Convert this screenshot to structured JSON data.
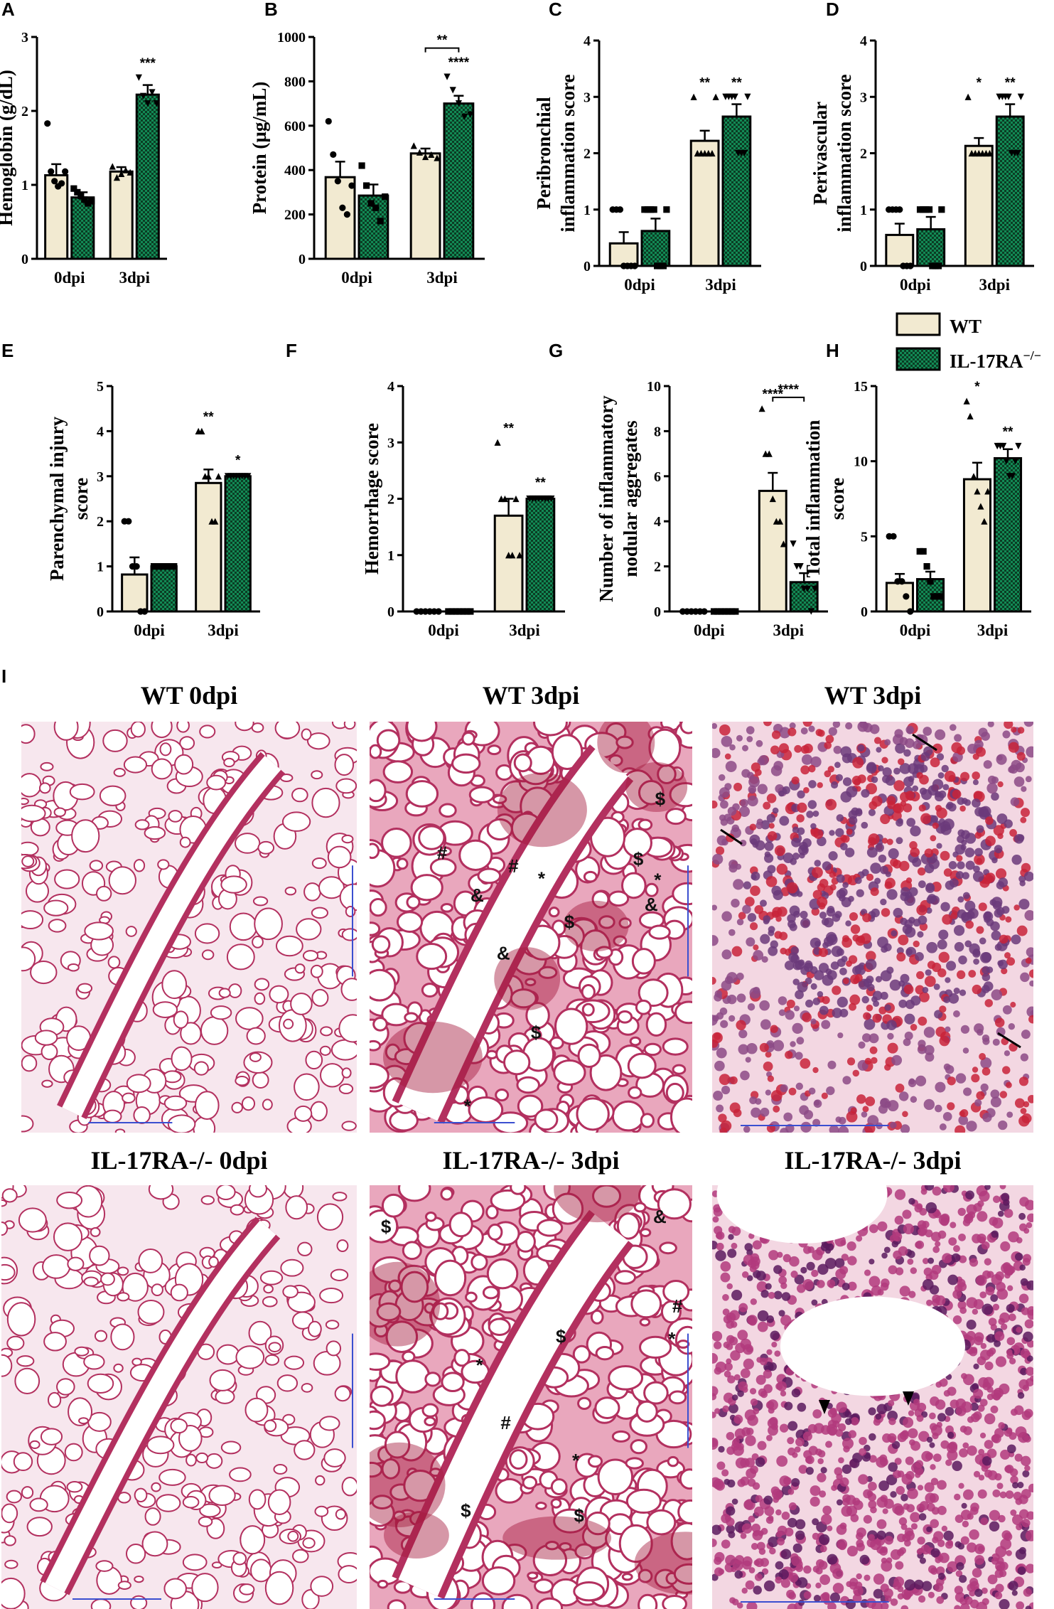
{
  "colors": {
    "wt": "#f2ead1",
    "ko": "#128a55",
    "ko_dots": "#0b3d24",
    "tissue": "#b3305f",
    "tissue_dark": "#6a1840",
    "tissue_bg": "#f7e7ee",
    "scale_bar": "#3b4fd0"
  },
  "legend": {
    "wt": "WT",
    "ko": "IL-17RA",
    "ko_sup": "−/−"
  },
  "chart_data": [
    {
      "id": "A",
      "type": "bar",
      "ylabel": [
        "Hemoglobin (g/dL)"
      ],
      "categories": [
        "0dpi",
        "3dpi"
      ],
      "yticks": [
        "0",
        "1",
        "2",
        "3"
      ],
      "ylim": [
        0,
        3
      ],
      "series": [
        {
          "values": [
            1.13,
            1.18
          ],
          "sem": [
            0.15,
            0.06
          ],
          "points": [
            [
              1.83,
              1.18,
              1.05,
              0.98,
              1.02,
              1.18
            ],
            [
              1.25,
              1.1,
              1.15,
              1.2,
              1.17
            ]
          ]
        },
        {
          "values": [
            0.83,
            2.22
          ],
          "sem": [
            0.07,
            0.13
          ],
          "points": [
            [
              0.95,
              0.9,
              0.85,
              0.8,
              0.75,
              0.78
            ],
            [
              2.45,
              2.2,
              2.1,
              2.25,
              2.1
            ]
          ]
        }
      ],
      "annotations": [
        {
          "group": 1,
          "series": 1,
          "text": "***"
        }
      ]
    },
    {
      "id": "B",
      "type": "bar",
      "ylabel": [
        "Protein (µg/mL)"
      ],
      "categories": [
        "0dpi",
        "3dpi"
      ],
      "yticks": [
        "0",
        "200",
        "400",
        "600",
        "800",
        "1000"
      ],
      "ylim": [
        0,
        1000
      ],
      "series": [
        {
          "values": [
            368,
            475
          ],
          "sem": [
            70,
            22
          ],
          "points": [
            [
              620,
              470,
              350,
              230,
              200,
              330
            ],
            [
              510,
              480,
              460,
              470,
              455
            ]
          ]
        },
        {
          "values": [
            285,
            700
          ],
          "sem": [
            50,
            35
          ],
          "points": [
            [
              420,
              330,
              250,
              230,
              170,
              280
            ],
            [
              820,
              760,
              700,
              640,
              650
            ]
          ]
        }
      ],
      "annotations": [
        {
          "group": 1,
          "series": 1,
          "text": "****"
        }
      ],
      "bracket": {
        "group": 1,
        "text": "**",
        "y": 950
      }
    },
    {
      "id": "C",
      "type": "bar",
      "ylabel": [
        "Peribronchial",
        "inflammation score"
      ],
      "categories": [
        "0dpi",
        "3dpi"
      ],
      "yticks": [
        "0",
        "1",
        "2",
        "3",
        "4"
      ],
      "ylim": [
        0,
        4
      ],
      "series": [
        {
          "values": [
            0.4,
            2.22
          ],
          "sem": [
            0.2,
            0.18
          ],
          "points": [
            [
              1,
              1,
              1,
              0,
              0,
              0,
              0
            ],
            [
              3,
              2,
              2,
              2,
              2,
              2,
              3
            ]
          ]
        },
        {
          "values": [
            0.62,
            2.65
          ],
          "sem": [
            0.22,
            0.22
          ],
          "points": [
            [
              1,
              1,
              1,
              1,
              0,
              0,
              0,
              1
            ],
            [
              3,
              3,
              3,
              3,
              2,
              2,
              2,
              3
            ]
          ]
        }
      ],
      "annotations": [
        {
          "group": 1,
          "series": 0,
          "text": "**"
        },
        {
          "group": 1,
          "series": 1,
          "text": "**"
        }
      ]
    },
    {
      "id": "D",
      "type": "bar",
      "ylabel": [
        "Perivascular",
        "inflammation score"
      ],
      "categories": [
        "0dpi",
        "3dpi"
      ],
      "yticks": [
        "0",
        "1",
        "2",
        "3",
        "4"
      ],
      "ylim": [
        0,
        4
      ],
      "series": [
        {
          "values": [
            0.55,
            2.13
          ],
          "sem": [
            0.2,
            0.14
          ],
          "points": [
            [
              1,
              1,
              1,
              1,
              0,
              0,
              0
            ],
            [
              3,
              2,
              2,
              2,
              2,
              2,
              2
            ]
          ]
        },
        {
          "values": [
            0.65,
            2.65
          ],
          "sem": [
            0.22,
            0.22
          ],
          "points": [
            [
              1,
              1,
              1,
              1,
              0,
              0,
              0,
              1
            ],
            [
              3,
              3,
              3,
              3,
              2,
              2,
              2,
              3
            ]
          ]
        }
      ],
      "annotations": [
        {
          "group": 1,
          "series": 0,
          "text": "*"
        },
        {
          "group": 1,
          "series": 1,
          "text": "**"
        }
      ]
    },
    {
      "id": "E",
      "type": "bar",
      "ylabel": [
        "Parenchymal injury",
        "score"
      ],
      "categories": [
        "0dpi",
        "3dpi"
      ],
      "yticks": [
        "0",
        "1",
        "2",
        "3",
        "4",
        "5"
      ],
      "ylim": [
        0,
        5
      ],
      "series": [
        {
          "values": [
            0.82,
            2.85
          ],
          "sem": [
            0.38,
            0.3
          ],
          "points": [
            [
              2,
              2,
              1,
              1,
              0,
              0
            ],
            [
              4,
              4,
              3,
              3,
              2,
              2,
              3
            ]
          ]
        },
        {
          "values": [
            1.0,
            3.0
          ],
          "sem": [
            0,
            0.04
          ],
          "points": [
            [
              1,
              1,
              1,
              1,
              1,
              1,
              1,
              1
            ],
            [
              3,
              3,
              3,
              3,
              3,
              3,
              3,
              3
            ]
          ]
        }
      ],
      "annotations": [
        {
          "group": 1,
          "series": 0,
          "text": "**"
        },
        {
          "group": 1,
          "series": 1,
          "text": "*"
        }
      ]
    },
    {
      "id": "F",
      "type": "bar",
      "ylabel": [
        "Hemorrhage score"
      ],
      "categories": [
        "0dpi",
        "3dpi"
      ],
      "yticks": [
        "0",
        "1",
        "2",
        "3",
        "4"
      ],
      "ylim": [
        0,
        4
      ],
      "series": [
        {
          "values": [
            0,
            1.7
          ],
          "sem": [
            0,
            0.3
          ],
          "points": [
            [
              0,
              0,
              0,
              0,
              0,
              0
            ],
            [
              3,
              2,
              2,
              1,
              1,
              2,
              1
            ]
          ]
        },
        {
          "values": [
            0,
            2.0
          ],
          "sem": [
            0,
            0.03
          ],
          "points": [
            [
              0,
              0,
              0,
              0,
              0,
              0,
              0
            ],
            [
              2,
              2,
              2,
              2,
              2,
              2,
              2,
              2
            ]
          ]
        }
      ],
      "annotations": [
        {
          "group": 1,
          "series": 0,
          "text": "**"
        },
        {
          "group": 1,
          "series": 1,
          "text": "**"
        }
      ]
    },
    {
      "id": "G",
      "type": "bar",
      "ylabel": [
        "Number of inflammatory",
        "nodular aggregates"
      ],
      "categories": [
        "0dpi",
        "3dpi"
      ],
      "yticks": [
        "0",
        "2",
        "4",
        "6",
        "8",
        "10"
      ],
      "ylim": [
        0,
        10
      ],
      "series": [
        {
          "values": [
            0,
            5.35
          ],
          "sem": [
            0,
            0.8
          ],
          "points": [
            [
              0,
              0,
              0,
              0,
              0,
              0
            ],
            [
              9,
              7,
              7,
              5,
              4,
              4,
              3
            ]
          ]
        },
        {
          "values": [
            0,
            1.3
          ],
          "sem": [
            0,
            0.4
          ],
          "points": [
            [
              0,
              0,
              0,
              0,
              0,
              0,
              0
            ],
            [
              3,
              2,
              2,
              1,
              1,
              0,
              1
            ]
          ]
        }
      ],
      "annotations": [
        {
          "group": 1,
          "series": 0,
          "text": "****"
        }
      ],
      "bracket": {
        "group": 1,
        "text": "****",
        "y": 9.5
      }
    },
    {
      "id": "H",
      "type": "bar",
      "ylabel": [
        "Total inflammation",
        "score"
      ],
      "categories": [
        "0dpi",
        "3dpi"
      ],
      "yticks": [
        "0",
        "5",
        "10",
        "15"
      ],
      "ylim": [
        0,
        15
      ],
      "series": [
        {
          "values": [
            1.9,
            8.8
          ],
          "sem": [
            0.6,
            1.1
          ],
          "points": [
            [
              5,
              5,
              2,
              2,
              1,
              0
            ],
            [
              14,
              13,
              9,
              8,
              7,
              6,
              8
            ]
          ]
        },
        {
          "values": [
            2.15,
            10.2
          ],
          "sem": [
            0.5,
            0.6
          ],
          "points": [
            [
              4,
              4,
              3,
              2,
              1,
              1,
              1
            ],
            [
              11,
              11,
              11,
              10,
              9,
              9,
              10,
              11
            ]
          ]
        }
      ],
      "annotations": [
        {
          "group": 1,
          "series": 0,
          "text": "*"
        },
        {
          "group": 1,
          "series": 1,
          "text": "**"
        }
      ]
    }
  ],
  "histology": {
    "panel_label": "I",
    "images": [
      {
        "title": "WT 0dpi",
        "style": "low-mag-normal"
      },
      {
        "title": "WT 3dpi",
        "style": "low-mag-inflamed",
        "marks": [
          "*",
          "#",
          "$",
          "*",
          "$",
          "#",
          "&",
          "&",
          "*",
          "$",
          "&",
          "$"
        ]
      },
      {
        "title": "WT 3dpi",
        "style": "high-mag-nodule"
      },
      {
        "title": "IL-17RA-/- 0dpi",
        "style": "low-mag-normal"
      },
      {
        "title": "IL-17RA-/- 3dpi",
        "style": "low-mag-inflamed",
        "marks": [
          "$",
          "&",
          "*",
          "#",
          "$",
          "#",
          "*",
          "$",
          "$",
          "*"
        ]
      },
      {
        "title": "IL-17RA-/- 3dpi",
        "style": "high-mag-airway"
      }
    ]
  }
}
